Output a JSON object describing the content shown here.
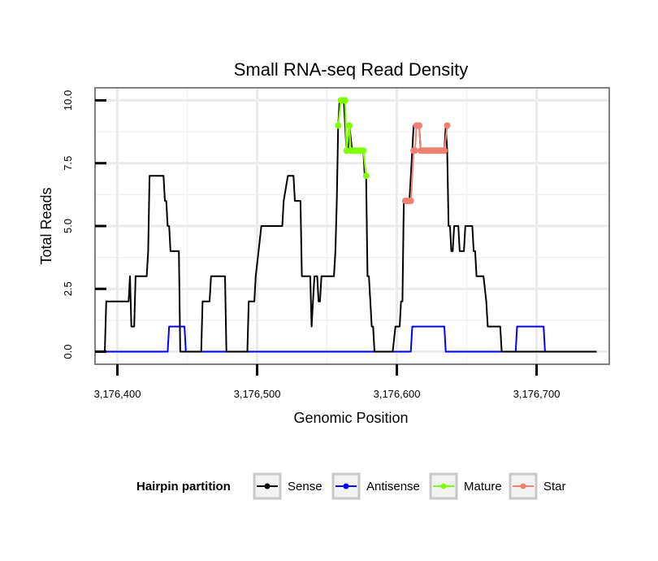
{
  "chart_data": {
    "type": "line",
    "title": "Small RNA-seq Read Density",
    "xlabel": "Genomic Position",
    "ylabel": "Total Reads",
    "xlim": [
      3176384,
      3176752
    ],
    "ylim": [
      -0.5,
      10.5
    ],
    "x_ticks": [
      3176400,
      3176500,
      3176600,
      3176700
    ],
    "x_tick_labels": [
      "3,176,400",
      "3,176,500",
      "3,176,600",
      "3,176,700"
    ],
    "y_ticks": [
      0,
      2.5,
      5,
      7.5,
      10
    ],
    "y_tick_labels": [
      "0.0",
      "2.5",
      "5.0",
      "7.5",
      "10.0"
    ],
    "grid": true,
    "legend": {
      "title": "Hairpin partition",
      "position": "bottom",
      "entries": [
        {
          "label": "Sense",
          "color": "#000000"
        },
        {
          "label": "Antisense",
          "color": "#0000ff"
        },
        {
          "label": "Mature",
          "color": "#7fff00"
        },
        {
          "label": "Star",
          "color": "#f08070"
        }
      ]
    },
    "series": [
      {
        "name": "Sense",
        "color": "#000000",
        "points": [
          [
            3176391,
            0
          ],
          [
            3176392,
            2
          ],
          [
            3176408,
            2
          ],
          [
            3176409,
            3
          ],
          [
            3176410,
            1
          ],
          [
            3176412,
            1
          ],
          [
            3176413,
            3
          ],
          [
            3176421,
            3
          ],
          [
            3176422,
            4
          ],
          [
            3176423,
            7
          ],
          [
            3176433,
            7
          ],
          [
            3176434,
            6
          ],
          [
            3176435,
            6
          ],
          [
            3176436,
            5
          ],
          [
            3176437,
            5
          ],
          [
            3176438,
            4
          ],
          [
            3176444,
            4
          ],
          [
            3176445,
            0
          ],
          [
            3176460,
            0
          ],
          [
            3176461,
            2
          ],
          [
            3176466,
            2
          ],
          [
            3176467,
            3
          ],
          [
            3176477,
            3
          ],
          [
            3176478,
            0
          ],
          [
            3176493,
            0
          ],
          [
            3176494,
            2
          ],
          [
            3176498,
            2
          ],
          [
            3176499,
            3
          ],
          [
            3176501,
            4
          ],
          [
            3176503,
            5
          ],
          [
            3176518,
            5
          ],
          [
            3176519,
            6
          ],
          [
            3176522,
            7
          ],
          [
            3176526,
            7
          ],
          [
            3176527,
            6
          ],
          [
            3176531,
            6
          ],
          [
            3176532,
            3
          ],
          [
            3176538,
            3
          ],
          [
            3176539,
            1
          ],
          [
            3176540,
            2
          ],
          [
            3176541,
            3
          ],
          [
            3176543,
            3
          ],
          [
            3176544,
            2
          ],
          [
            3176545,
            2
          ],
          [
            3176546,
            3
          ],
          [
            3176555,
            3
          ],
          [
            3176556,
            4
          ],
          [
            3176557,
            6
          ],
          [
            3176558,
            9
          ],
          [
            3176559,
            10
          ],
          [
            3176562,
            10
          ],
          [
            3176563,
            9
          ],
          [
            3176564,
            8
          ],
          [
            3176565,
            8
          ],
          [
            3176566,
            9
          ],
          [
            3176568,
            8
          ],
          [
            3176576,
            8
          ],
          [
            3176577,
            7
          ],
          [
            3176578,
            7
          ],
          [
            3176579,
            3
          ],
          [
            3176580,
            3
          ],
          [
            3176581,
            2
          ],
          [
            3176582,
            1
          ],
          [
            3176583,
            1
          ],
          [
            3176584,
            0
          ],
          [
            3176597,
            0
          ],
          [
            3176599,
            1
          ],
          [
            3176602,
            1
          ],
          [
            3176603,
            2
          ],
          [
            3176604,
            2
          ],
          [
            3176605,
            6
          ],
          [
            3176609,
            6
          ],
          [
            3176611,
            8
          ],
          [
            3176612,
            9
          ],
          [
            3176616,
            9
          ],
          [
            3176617,
            8
          ],
          [
            3176634,
            8
          ],
          [
            3176635,
            9
          ],
          [
            3176636,
            8
          ],
          [
            3176637,
            5
          ],
          [
            3176638,
            5
          ],
          [
            3176639,
            4
          ],
          [
            3176640,
            4
          ],
          [
            3176641,
            5
          ],
          [
            3176644,
            5
          ],
          [
            3176645,
            4
          ],
          [
            3176648,
            4
          ],
          [
            3176649,
            5
          ],
          [
            3176654,
            5
          ],
          [
            3176655,
            4
          ],
          [
            3176656,
            4
          ],
          [
            3176657,
            3
          ],
          [
            3176662,
            3
          ],
          [
            3176664,
            2
          ],
          [
            3176665,
            1
          ],
          [
            3176674,
            1
          ],
          [
            3176675,
            0
          ],
          [
            3176743,
            0
          ]
        ]
      },
      {
        "name": "Antisense",
        "color": "#0000ff",
        "points": [
          [
            3176391,
            0
          ],
          [
            3176436,
            0
          ],
          [
            3176437,
            1
          ],
          [
            3176448,
            1
          ],
          [
            3176449,
            0
          ],
          [
            3176610,
            0
          ],
          [
            3176611,
            1
          ],
          [
            3176634,
            1
          ],
          [
            3176635,
            0
          ],
          [
            3176685,
            0
          ],
          [
            3176686,
            1
          ],
          [
            3176705,
            1
          ],
          [
            3176706,
            0
          ],
          [
            3176743,
            0
          ]
        ]
      },
      {
        "name": "Mature",
        "color": "#7fff00",
        "points": [
          [
            3176558,
            9
          ],
          [
            3176560,
            10
          ],
          [
            3176561,
            10
          ],
          [
            3176562,
            10
          ],
          [
            3176563,
            10
          ],
          [
            3176564,
            8
          ],
          [
            3176566,
            9
          ],
          [
            3176567,
            8
          ],
          [
            3176568,
            8
          ],
          [
            3176569,
            8
          ],
          [
            3176570,
            8
          ],
          [
            3176571,
            8
          ],
          [
            3176572,
            8
          ],
          [
            3176573,
            8
          ],
          [
            3176574,
            8
          ],
          [
            3176575,
            8
          ],
          [
            3176576,
            8
          ],
          [
            3176578,
            7
          ]
        ]
      },
      {
        "name": "Star",
        "color": "#f08070",
        "points": [
          [
            3176606,
            6
          ],
          [
            3176607,
            6
          ],
          [
            3176608,
            6
          ],
          [
            3176609,
            6
          ],
          [
            3176610,
            6
          ],
          [
            3176612,
            8
          ],
          [
            3176613,
            8
          ],
          [
            3176614,
            9
          ],
          [
            3176615,
            9
          ],
          [
            3176616,
            9
          ],
          [
            3176617,
            8
          ],
          [
            3176618,
            8
          ],
          [
            3176619,
            8
          ],
          [
            3176620,
            8
          ],
          [
            3176621,
            8
          ],
          [
            3176622,
            8
          ],
          [
            3176623,
            8
          ],
          [
            3176624,
            8
          ],
          [
            3176625,
            8
          ],
          [
            3176626,
            8
          ],
          [
            3176627,
            8
          ],
          [
            3176628,
            8
          ],
          [
            3176629,
            8
          ],
          [
            3176630,
            8
          ],
          [
            3176631,
            8
          ],
          [
            3176632,
            8
          ],
          [
            3176633,
            8
          ],
          [
            3176634,
            8
          ],
          [
            3176636,
            9
          ]
        ]
      }
    ]
  }
}
